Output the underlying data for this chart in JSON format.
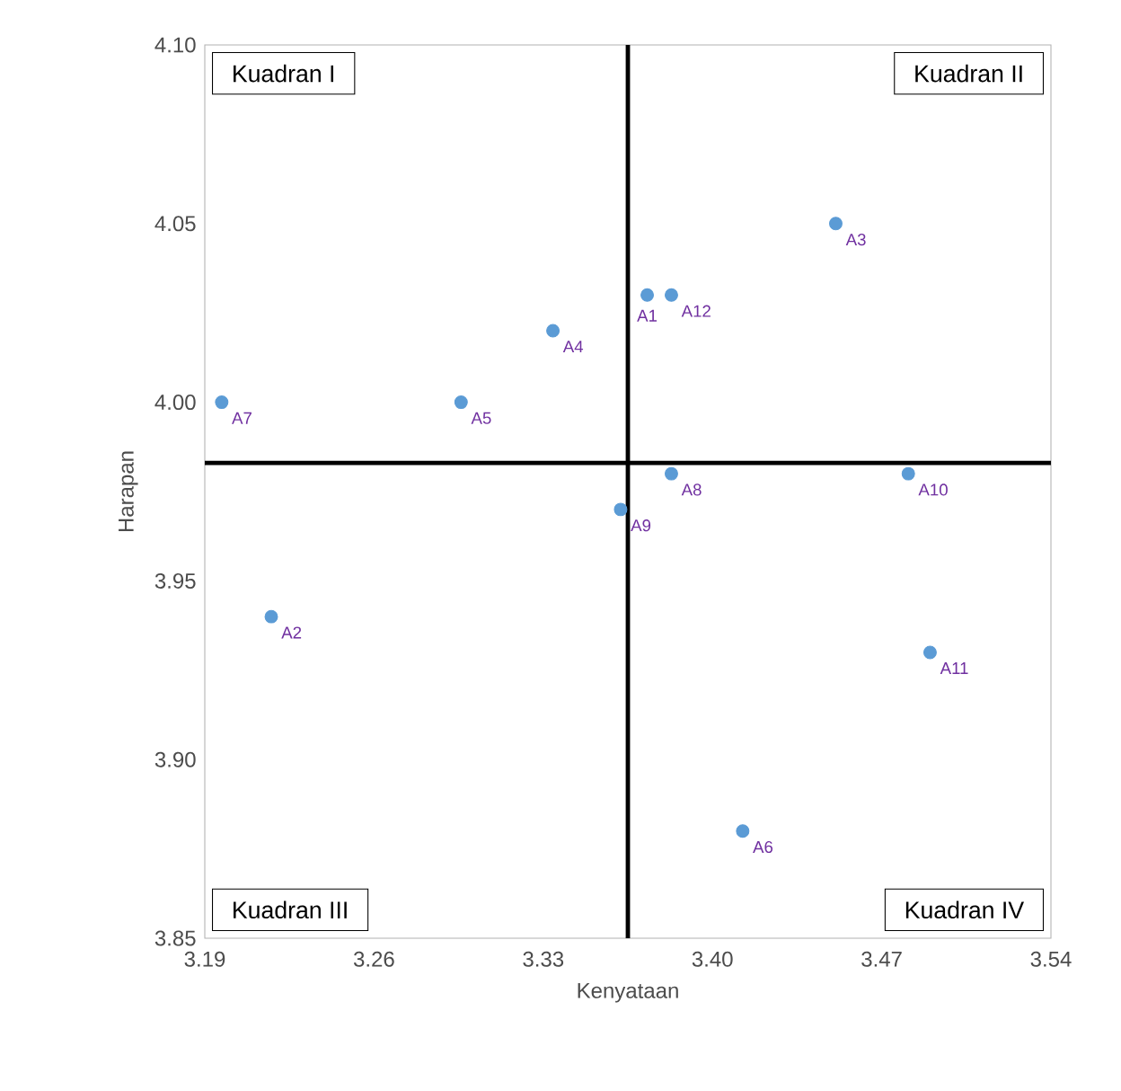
{
  "chart_data": {
    "type": "scatter",
    "xlabel": "Kenyataan",
    "ylabel": "Harapan",
    "color": "#5b9bd5",
    "marker": "circle",
    "x": [
      3.373,
      3.2175,
      3.451,
      3.334,
      3.296,
      3.4125,
      3.197,
      3.383,
      3.362,
      3.481,
      3.49,
      3.383
    ],
    "values": [
      4.03,
      3.94,
      4.05,
      4.02,
      4.0,
      3.88,
      4.0,
      3.98,
      3.97,
      3.98,
      3.93,
      4.03
    ],
    "xlim": [
      3.19,
      3.54
    ],
    "xticks": [
      {
        "value": 3.19,
        "label": "3.19"
      },
      {
        "value": 3.26,
        "label": "3.26"
      },
      {
        "value": 3.33,
        "label": "3.33"
      },
      {
        "value": 3.4,
        "label": "3.40"
      },
      {
        "value": 3.47,
        "label": "3.47"
      },
      {
        "value": 3.54,
        "label": "3.54"
      }
    ],
    "ylim": [
      3.85,
      4.1
    ],
    "yticks": [
      {
        "value": 3.85,
        "label": "3.85"
      },
      {
        "value": 3.9,
        "label": "3.90"
      },
      {
        "value": 3.95,
        "label": "3.95"
      },
      {
        "value": 4.0,
        "label": "4.00"
      },
      {
        "value": 4.05,
        "label": "4.05"
      },
      {
        "value": 4.1,
        "label": "4.10"
      }
    ],
    "ref_lines": [
      {
        "axis": "x",
        "value": 3.365,
        "color": "#000000"
      },
      {
        "axis": "y",
        "value": 3.983,
        "color": "#000000"
      }
    ],
    "annotations": [
      "Kuadran I",
      "Kuadran II",
      "Kuadran III",
      "Kuadran IV",
      {
        "text": "A1",
        "x": 3.373,
        "y": 4.03
      },
      {
        "text": "A2",
        "x": 3.2175,
        "y": 3.94
      },
      {
        "text": "A3",
        "x": 3.451,
        "y": 4.05
      },
      {
        "text": "A4",
        "x": 3.334,
        "y": 4.02
      },
      {
        "text": "A5",
        "x": 3.296,
        "y": 4.0
      },
      {
        "text": "A6",
        "x": 3.4125,
        "y": 3.88
      },
      {
        "text": "A7",
        "x": 3.197,
        "y": 4.0
      },
      {
        "text": "A8",
        "x": 3.383,
        "y": 3.98
      },
      {
        "text": "A9",
        "x": 3.362,
        "y": 3.97
      },
      {
        "text": "A10",
        "x": 3.481,
        "y": 3.98
      },
      {
        "text": "A11",
        "x": 3.49,
        "y": 3.93
      },
      {
        "text": "A12",
        "x": 3.383,
        "y": 4.03
      }
    ]
  }
}
